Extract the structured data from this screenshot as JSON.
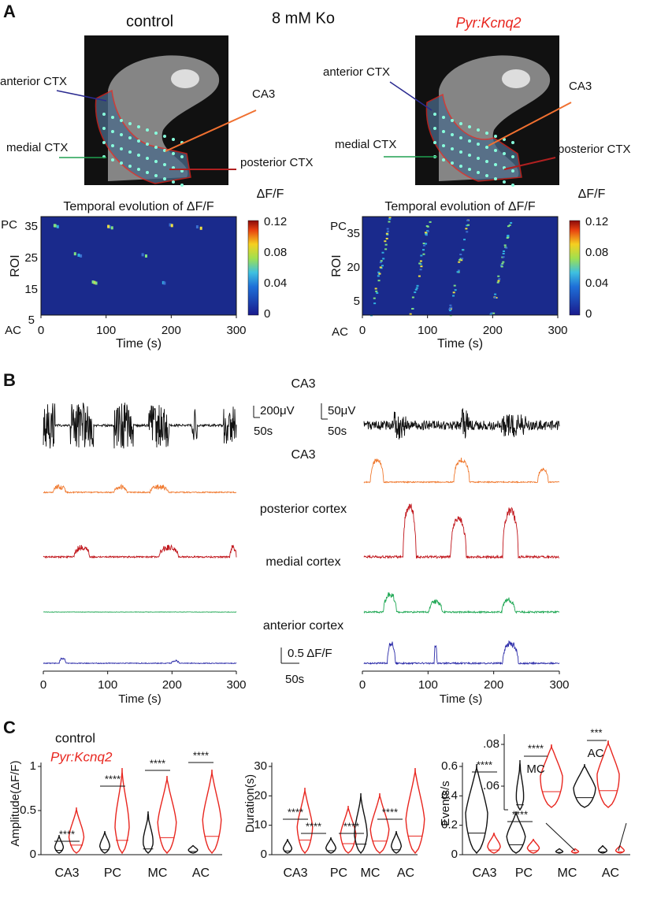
{
  "panel_a": {
    "label": "A",
    "title": "8 mM Ko",
    "control": {
      "title": "control",
      "regions": [
        "anterior CTX",
        "medial CTX",
        "CA3",
        "posterior CTX"
      ],
      "heatmap": {
        "title": "Temporal evolution of ΔF/F",
        "y_label": "ROI",
        "y_ticks": [
          "PC",
          "35",
          "25",
          "15",
          "5",
          "AC"
        ],
        "x_label": "Time (s)",
        "x_ticks": [
          "0",
          "100",
          "200",
          "300"
        ],
        "colorbar_label": "ΔF/F",
        "colorbar_ticks": [
          "0.12",
          "0.08",
          "0.04",
          "0"
        ]
      }
    },
    "mutant": {
      "title": "Pyr:Kcnq2",
      "regions": [
        "anterior CTX",
        "medial CTX",
        "CA3",
        "posterior CTX"
      ],
      "heatmap": {
        "title": "Temporal evolution of ΔF/F",
        "y_label": "ROI",
        "y_ticks": [
          "PC",
          "35",
          "20",
          "5",
          "AC"
        ],
        "x_label": "Time (s)",
        "x_ticks": [
          "0",
          "100",
          "200",
          "300"
        ],
        "colorbar_label": "ΔF/F",
        "colorbar_ticks": [
          "0.12",
          "0.08",
          "0.04",
          "0"
        ]
      }
    }
  },
  "panel_b": {
    "label": "B",
    "title": "CA3",
    "lfp_scale_control": [
      "200μV",
      "50s"
    ],
    "lfp_scale_mutant": [
      "50μV",
      "50s"
    ],
    "traces": [
      "CA3",
      "posterior cortex",
      "medial cortex",
      "anterior cortex"
    ],
    "df_scale": [
      "0.5 ΔF/F",
      "50s"
    ],
    "x_ticks": [
      "0",
      "100",
      "200",
      "300"
    ],
    "x_label": "Time (s)"
  },
  "panel_c": {
    "label": "C",
    "legend": [
      "control",
      "Pyr:Kcnq2"
    ],
    "categories": [
      "CA3",
      "PC",
      "MC",
      "AC"
    ],
    "amplitude": {
      "y_label": "Amplitude(ΔF/F)",
      "y_ticks": [
        "0",
        "0.5",
        "1"
      ],
      "significance": [
        "****",
        "****",
        "****",
        "****"
      ]
    },
    "duration": {
      "y_label": "Duration(s)",
      "y_ticks": [
        "0",
        "10",
        "20",
        "30"
      ],
      "significance": [
        "****",
        "****",
        "****",
        "****"
      ]
    },
    "events": {
      "y_label": "Events/s",
      "y_ticks": [
        "0",
        "0.2",
        "0.4",
        "0.6"
      ],
      "significance": [
        "****",
        "****"
      ],
      "inset": {
        "y_ticks": [
          ".06",
          ".08"
        ],
        "labels": [
          "MC",
          "AC"
        ],
        "significance": [
          "****",
          "***"
        ]
      }
    }
  }
}
